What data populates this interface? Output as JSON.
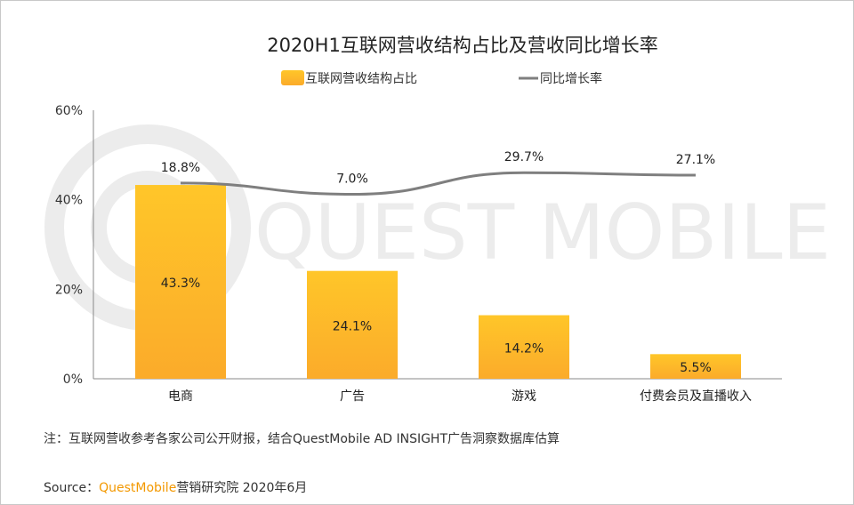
{
  "chart_data": {
    "type": "bar+line",
    "title": "2020H1互联网营收结构占比及营收同比增长率",
    "categories": [
      "电商",
      "广告",
      "游戏",
      "付费会员及直播收入"
    ],
    "series": [
      {
        "name": "互联网营收结构占比",
        "type": "bar",
        "values": [
          43.3,
          24.1,
          14.2,
          5.5
        ],
        "labels": [
          "43.3%",
          "24.1%",
          "14.2%",
          "5.5%"
        ],
        "color": "#fbb927"
      },
      {
        "name": "同比增长率",
        "type": "line",
        "values": [
          18.8,
          7.0,
          29.7,
          27.1
        ],
        "labels": [
          "18.8%",
          "7.0%",
          "29.7%",
          "27.1%"
        ],
        "color": "#7f7f7f",
        "smooth": true
      }
    ],
    "yticks": [
      "0%",
      "20%",
      "40%",
      "60%"
    ],
    "ylim": [
      0,
      60
    ],
    "legend": "top",
    "grid": false
  },
  "watermark": "QUEST MOBILE",
  "note": "注：互联网营收参考各家公司公开财报，结合QuestMobile AD INSIGHT广告洞察数据库估算",
  "source": {
    "prefix": "Source：",
    "brand": "QuestMobile",
    "suffix": "营销研究院 2020年6月"
  }
}
